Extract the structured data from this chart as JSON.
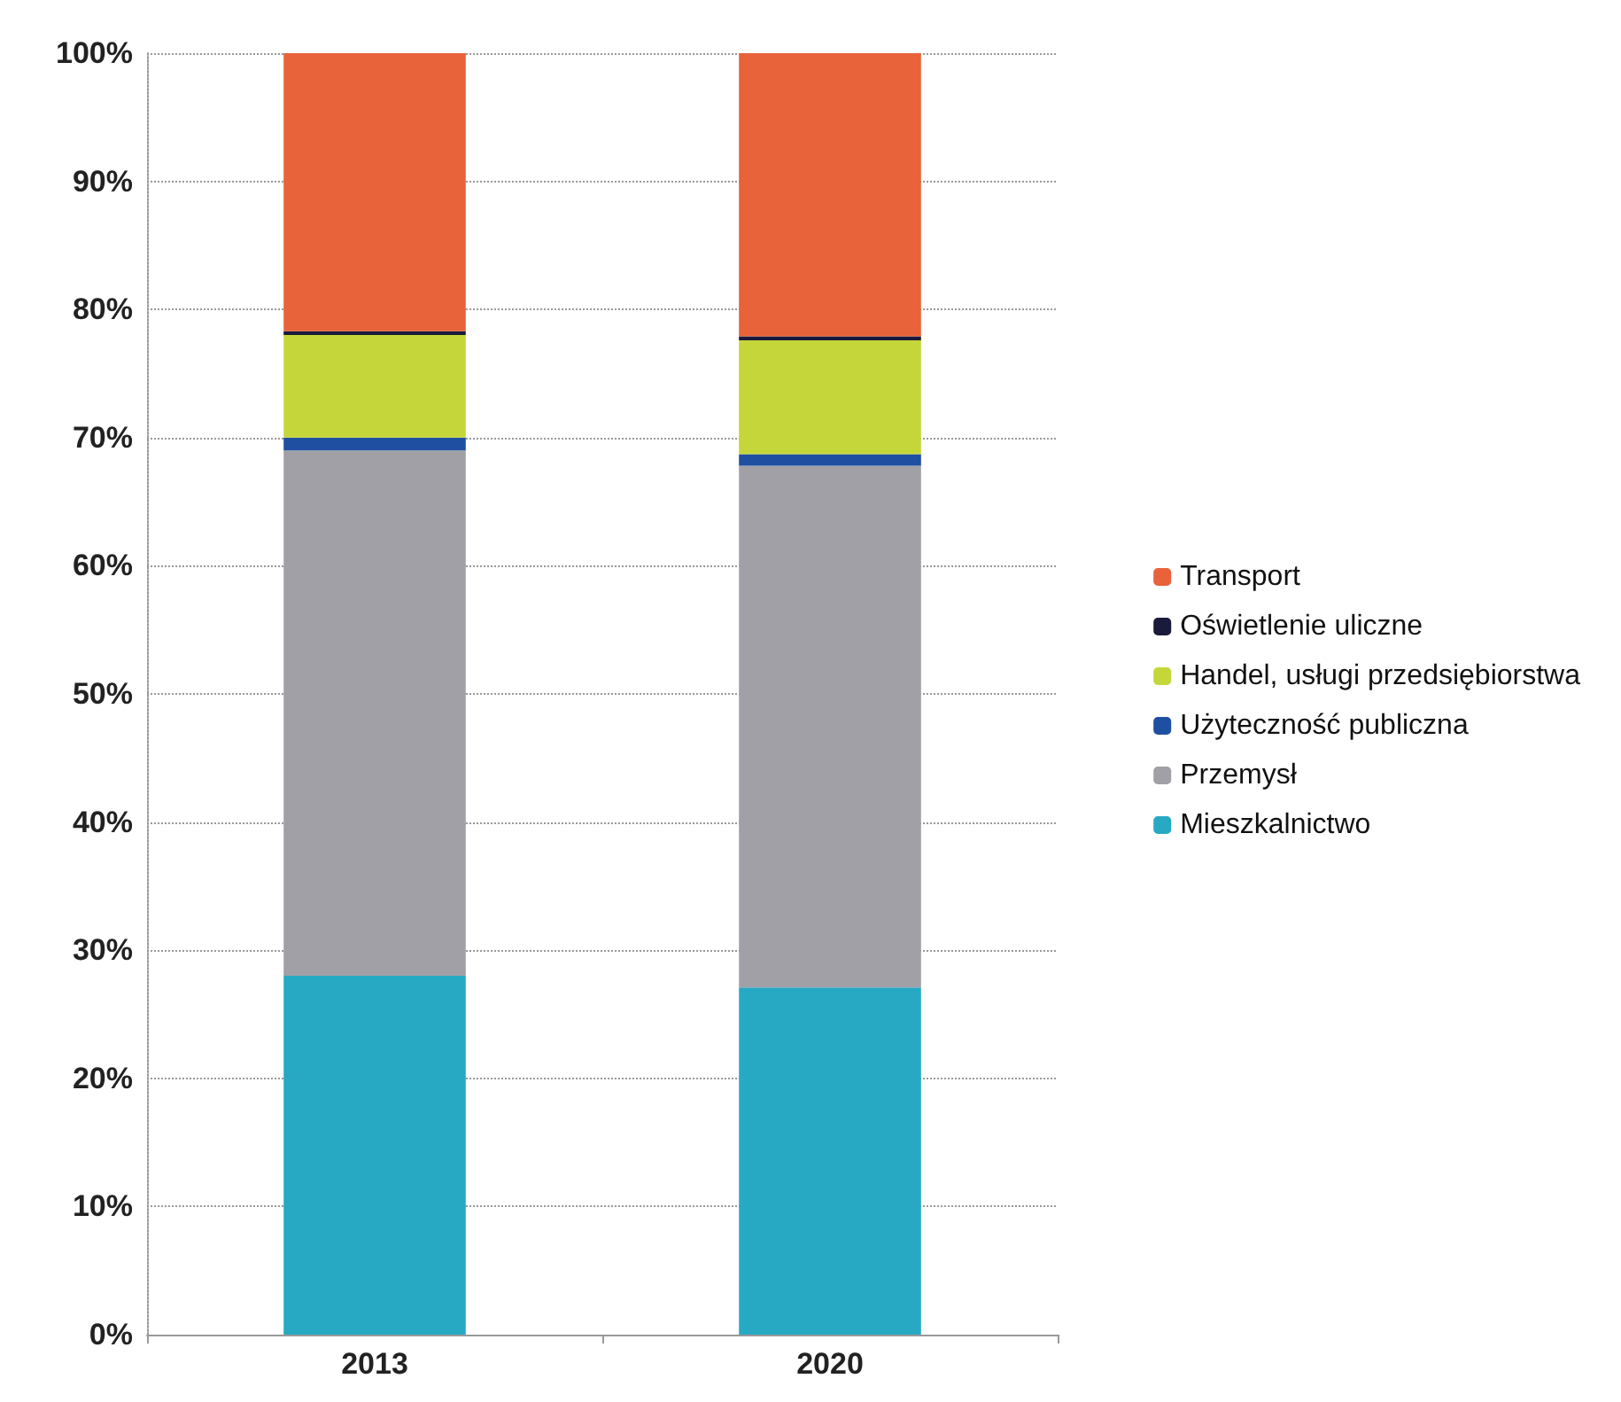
{
  "chart_data": {
    "type": "bar",
    "stacked": true,
    "categories": [
      "2013",
      "2020"
    ],
    "series": [
      {
        "name": "Mieszkalnictwo",
        "color": "#27a9c4",
        "values": [
          28,
          27.1
        ]
      },
      {
        "name": "Przemysł",
        "color": "#a0a0a6",
        "values": [
          41,
          40.7
        ]
      },
      {
        "name": "Użyteczność publiczna",
        "color": "#1f4fa0",
        "values": [
          1,
          0.9
        ]
      },
      {
        "name": "Handel, usługi przedsiębiorstwa",
        "color": "#c5d63a",
        "values": [
          8,
          8.9
        ]
      },
      {
        "name": "Oświetlenie uliczne",
        "color": "#1a1a3a",
        "values": [
          0.3,
          0.3
        ]
      },
      {
        "name": "Transport",
        "color": "#e8623a",
        "values": [
          21.7,
          22.1
        ]
      }
    ],
    "ylim": [
      0,
      100
    ],
    "yticks": [
      {
        "value": 0,
        "label": "0%"
      },
      {
        "value": 10,
        "label": "10%"
      },
      {
        "value": 20,
        "label": "20%"
      },
      {
        "value": 30,
        "label": "30%"
      },
      {
        "value": 40,
        "label": "40%"
      },
      {
        "value": 50,
        "label": "50%"
      },
      {
        "value": 60,
        "label": "60%"
      },
      {
        "value": 70,
        "label": "70%"
      },
      {
        "value": 80,
        "label": "80%"
      },
      {
        "value": 90,
        "label": "90%"
      },
      {
        "value": 100,
        "label": "100%"
      }
    ],
    "grid": "y",
    "legend": "right"
  }
}
